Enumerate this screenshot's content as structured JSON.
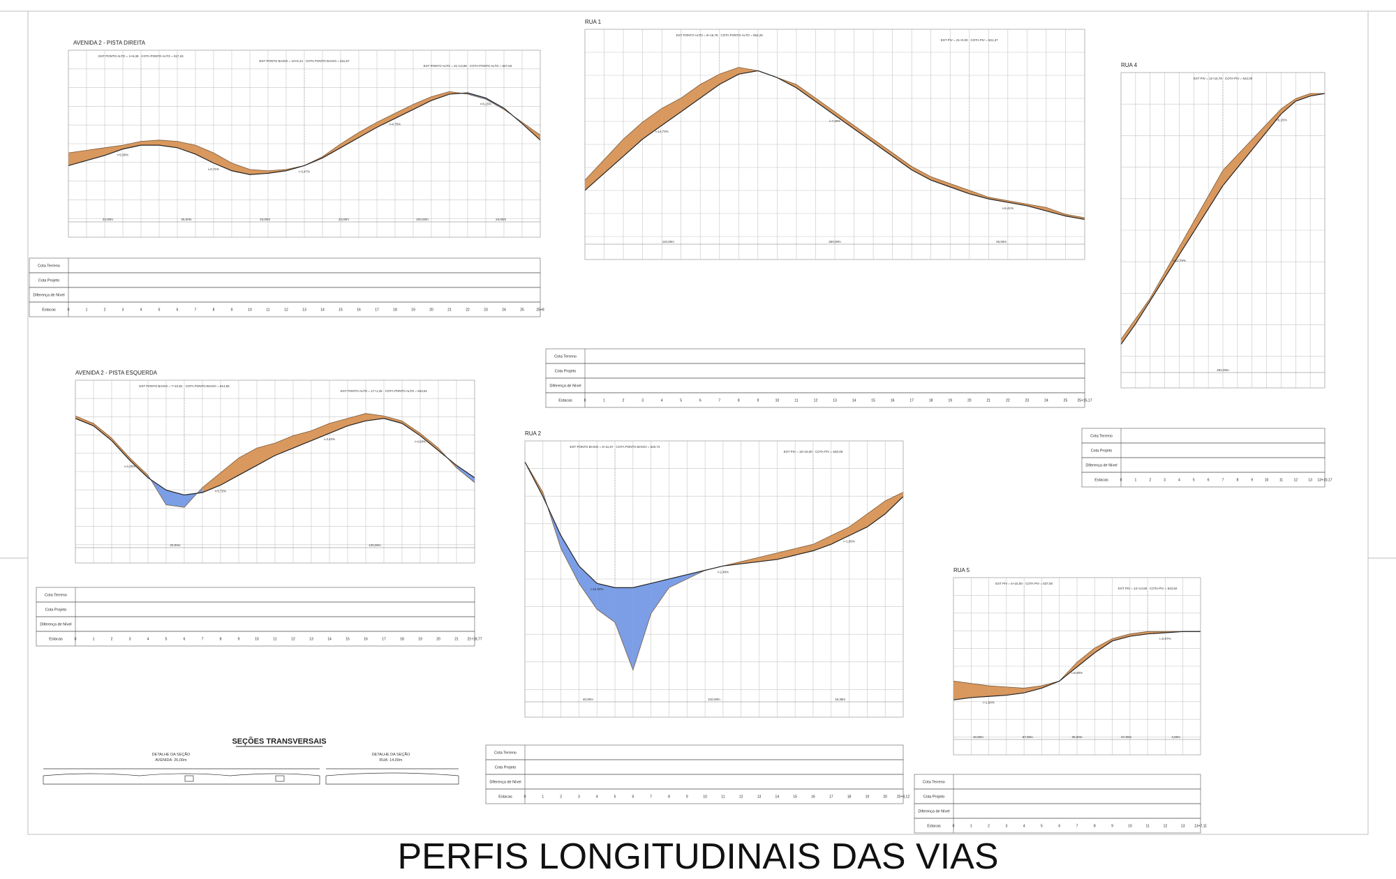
{
  "sheet_title": "PERFIS LONGITUDINAIS DAS VIAS",
  "row_labels": [
    "Cota Terreno",
    "Cota Projeto",
    "Diferença de Nível",
    "Estacas"
  ],
  "colors": {
    "cut": "#d9985e",
    "fill": "#7b9ee6",
    "grid": "#c4c4c4",
    "line": "#222222"
  },
  "profiles": [
    {
      "id": "avd2-direita",
      "title": "AVENIDA 2 - PISTA DIREITA",
      "stations": [
        "0",
        "1",
        "2",
        "3",
        "4",
        "5",
        "6",
        "7",
        "8",
        "9",
        "10",
        "11",
        "12",
        "13",
        "14",
        "15",
        "16",
        "17",
        "18",
        "19",
        "20",
        "21",
        "22",
        "23",
        "24",
        "25",
        "25+8"
      ],
      "ground": [
        36,
        38,
        40,
        42,
        45,
        46,
        45,
        42,
        36,
        28,
        23,
        22,
        23,
        26,
        33,
        43,
        52,
        60,
        67,
        74,
        80,
        84,
        82,
        78,
        70,
        60,
        50
      ],
      "design": [
        26,
        30,
        34,
        39,
        42,
        42,
        40,
        35,
        28,
        22,
        19,
        20,
        22,
        26,
        32,
        40,
        48,
        56,
        63,
        70,
        77,
        82,
        83,
        79,
        71,
        59,
        46
      ],
      "grades": [
        "i=5,95%",
        "i=0,71%",
        "i=3,47%",
        "i=4,75%",
        "i=6,15%"
      ],
      "spans": [
        "23,00m",
        "25,00m",
        "33,00m",
        "23,00m",
        "220,00m",
        "24,00m"
      ],
      "vert_notes": [
        "EST PONTO ALTO = 4+6,38 · COTA PONTO ALTO = 517,34",
        "EST PONTO BAIXO = 10+8,14 · COTA PONTO BAIXO = 511,67",
        "EST PONTO ALTO = 21+13,96 · COTA PONTO ALTO = 527,63"
      ]
    },
    {
      "id": "rua1",
      "title": "RUA 1",
      "stations": [
        "0",
        "1",
        "2",
        "3",
        "4",
        "5",
        "6",
        "7",
        "8",
        "9",
        "10",
        "11",
        "12",
        "13",
        "14",
        "15",
        "16",
        "17",
        "18",
        "19",
        "20",
        "21",
        "22",
        "23",
        "24",
        "25",
        "25+15,17"
      ],
      "ground": [
        24,
        36,
        48,
        58,
        66,
        72,
        80,
        86,
        90,
        88,
        84,
        80,
        72,
        64,
        56,
        48,
        40,
        32,
        26,
        22,
        18,
        14,
        12,
        10,
        8,
        4,
        2
      ],
      "design": [
        18,
        28,
        38,
        48,
        56,
        64,
        72,
        80,
        86,
        88,
        84,
        78,
        70,
        62,
        54,
        46,
        38,
        30,
        24,
        20,
        16,
        13,
        11,
        9,
        6,
        3,
        1
      ],
      "grades": [
        "i=14,73%",
        "i=7,46%",
        "i=5,41%"
      ],
      "spans": [
        "110,00m",
        "260,00m",
        "45,00m"
      ],
      "vert_notes": [
        "EST PONTO ALTO = 9+16,78 · COTA PONTO ALTO = 552,25",
        "EST PIV = 21+0,00 · COTA PIV = 521,37"
      ]
    },
    {
      "id": "rua4",
      "title": "RUA 4",
      "stations": [
        "0",
        "1",
        "2",
        "3",
        "4",
        "5",
        "6",
        "7",
        "8",
        "9",
        "10",
        "11",
        "12",
        "13",
        "13+10,17"
      ],
      "ground": [
        4,
        12,
        20,
        30,
        40,
        50,
        60,
        70,
        76,
        82,
        88,
        94,
        98,
        100,
        100
      ],
      "design": [
        2,
        10,
        19,
        28,
        37,
        46,
        55,
        64,
        71,
        78,
        85,
        92,
        97,
        99,
        100
      ],
      "grades": [
        "i=12,78%",
        "i=6,15%"
      ],
      "spans": [
        "252,00m"
      ],
      "vert_notes": [
        "EST PIV = 12+15,78 · COTA PIV = 542,00"
      ]
    },
    {
      "id": "avd2-esquerda",
      "title": "AVENIDA 2 - PISTA ESQUERDA",
      "stations": [
        "0",
        "1",
        "2",
        "3",
        "4",
        "5",
        "6",
        "7",
        "8",
        "9",
        "10",
        "11",
        "12",
        "13",
        "14",
        "15",
        "16",
        "17",
        "18",
        "19",
        "20",
        "21",
        "21+18,77"
      ],
      "ground": [
        88,
        82,
        70,
        54,
        40,
        16,
        14,
        30,
        42,
        54,
        62,
        66,
        72,
        76,
        82,
        86,
        90,
        88,
        84,
        74,
        62,
        46,
        34
      ],
      "design": [
        86,
        80,
        68,
        52,
        38,
        28,
        24,
        26,
        32,
        40,
        48,
        56,
        62,
        68,
        74,
        80,
        84,
        86,
        82,
        72,
        60,
        48,
        38
      ],
      "grades": [
        "i=4,25%",
        "i=5,72%",
        "i=3,42%",
        "i=4,83%"
      ],
      "spans": [
        "20,00m",
        "120,00m"
      ],
      "vert_notes": [
        "EST PONTO BAIXO = 7+10,81 · COTA PONTO BAIXO = 514,56",
        "EST PONTO ALTO = 17+1,25 · COTA PONTO ALTO = 523,61"
      ]
    },
    {
      "id": "rua2",
      "title": "RUA 2",
      "stations": [
        "0",
        "1",
        "2",
        "3",
        "4",
        "5",
        "6",
        "7",
        "8",
        "9",
        "10",
        "11",
        "12",
        "13",
        "14",
        "15",
        "16",
        "17",
        "18",
        "19",
        "20",
        "20+8,12"
      ],
      "ground": [
        100,
        86,
        60,
        44,
        32,
        26,
        4,
        30,
        42,
        46,
        50,
        52,
        54,
        56,
        58,
        60,
        62,
        66,
        70,
        76,
        82,
        86
      ],
      "design": [
        100,
        84,
        66,
        52,
        44,
        42,
        42,
        44,
        46,
        48,
        50,
        52,
        53,
        54,
        55,
        57,
        59,
        62,
        66,
        70,
        76,
        84
      ],
      "grades": [
        "i=16,98%",
        "i=2,40%",
        "i=1,56%"
      ],
      "spans": [
        "40,00m",
        "210,00m",
        "16,38m"
      ],
      "vert_notes": [
        "EST PONTO BAIXO = 6+11,57 · COTA PONTO BAIXO = 520,74",
        "EST PIV = 18+15,00 · COTA PIV = 530,00"
      ]
    },
    {
      "id": "rua5",
      "title": "RUA 5",
      "stations": [
        "0",
        "1",
        "2",
        "3",
        "4",
        "5",
        "6",
        "7",
        "8",
        "9",
        "10",
        "11",
        "12",
        "13",
        "13+7,11"
      ],
      "ground": [
        30,
        28,
        26,
        25,
        24,
        26,
        30,
        46,
        58,
        66,
        70,
        72,
        72,
        72,
        72
      ],
      "design": [
        14,
        16,
        17,
        18,
        20,
        24,
        30,
        42,
        54,
        64,
        68,
        70,
        71,
        72,
        72
      ],
      "grades": [
        "i=1,60%",
        "i=8,90%",
        "i=0,87%"
      ],
      "spans": [
        "10,00m",
        "67,00m",
        "35,00m",
        "67,00m",
        "4,00m"
      ],
      "vert_notes": [
        "EST PIV = 6+15,00 · COTA PIV = 537,60",
        "EST PIV = 12+14,58 · COTA PIV = 543,92"
      ]
    }
  ],
  "sections": {
    "heading": "SEÇÕES TRANSVERSAIS",
    "left_caption": "DETALHE DA SEÇÃO",
    "left_sub": "AVENIDA: 26,00m",
    "right_caption": "DETALHE DA SEÇÃO",
    "right_sub": "RUA: 14,00m"
  }
}
